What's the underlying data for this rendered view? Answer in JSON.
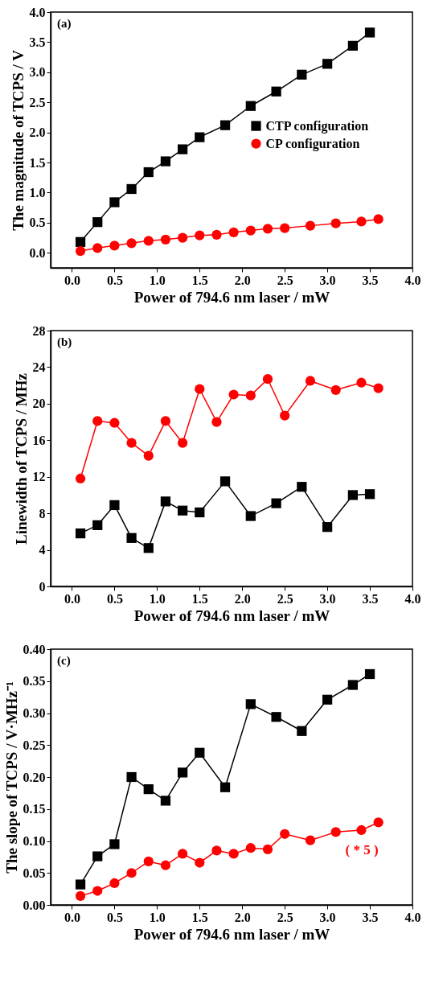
{
  "chart_data": [
    {
      "type": "line",
      "title": "(a)",
      "xlabel": "Power of 794.6 nm laser / mW",
      "ylabel": "The magnitude of TCPS / V",
      "xlim": [
        -0.25,
        4.0
      ],
      "ylim": [
        -0.25,
        4.0
      ],
      "xticks": [
        {
          "value": 0,
          "label": "0.0"
        },
        0.5,
        {
          "value": 1,
          "label": "1.0"
        },
        1.5,
        {
          "value": 2,
          "label": "2.0"
        },
        2.5,
        {
          "value": 3,
          "label": "3.0"
        },
        3.5,
        {
          "value": 4,
          "label": "4.0"
        }
      ],
      "yticks": [
        {
          "value": 0,
          "label": "0.0"
        },
        0.5,
        {
          "value": 1,
          "label": "1.0"
        },
        1.5,
        {
          "value": 2,
          "label": "2.0"
        },
        2.5,
        {
          "value": 3,
          "label": "3.0"
        },
        3.5,
        {
          "value": 4,
          "label": "4.0"
        }
      ],
      "grid": false,
      "legend": "right",
      "series": [
        {
          "name": "CTP configuration",
          "color": "#000000",
          "marker": "square",
          "x": [
            0.1,
            0.3,
            0.5,
            0.7,
            0.9,
            1.1,
            1.3,
            1.5,
            1.8,
            2.1,
            2.4,
            2.7,
            3.0,
            3.3,
            3.5
          ],
          "values": [
            0.18,
            0.51,
            0.84,
            1.06,
            1.34,
            1.52,
            1.72,
            1.92,
            2.12,
            2.44,
            2.68,
            2.96,
            3.14,
            3.44,
            3.66
          ]
        },
        {
          "name": "CP configuration",
          "color": "#ff0000",
          "marker": "circle",
          "x": [
            0.1,
            0.3,
            0.5,
            0.7,
            0.9,
            1.1,
            1.3,
            1.5,
            1.7,
            1.9,
            2.1,
            2.3,
            2.5,
            2.8,
            3.1,
            3.4,
            3.6
          ],
          "values": [
            0.03,
            0.08,
            0.12,
            0.16,
            0.2,
            0.22,
            0.25,
            0.29,
            0.3,
            0.34,
            0.37,
            0.4,
            0.41,
            0.45,
            0.49,
            0.52,
            0.56
          ]
        }
      ]
    },
    {
      "type": "line",
      "title": "(b)",
      "xlabel": "Power of 794.6 nm laser / mW",
      "ylabel": "Linewidth of TCPS / MHz",
      "xlim": [
        -0.25,
        4.0
      ],
      "ylim": [
        0,
        28
      ],
      "xticks": [
        {
          "value": 0,
          "label": "0.0"
        },
        0.5,
        {
          "value": 1,
          "label": "1.0"
        },
        1.5,
        {
          "value": 2,
          "label": "2.0"
        },
        2.5,
        {
          "value": 3,
          "label": "3.0"
        },
        3.5,
        {
          "value": 4,
          "label": "4.0"
        }
      ],
      "yticks": [
        0,
        4,
        8,
        12,
        16,
        20,
        24,
        28
      ],
      "grid": false,
      "legend": "right",
      "series": [
        {
          "name": "CTP configuration",
          "color": "#000000",
          "marker": "square",
          "x": [
            0.1,
            0.3,
            0.5,
            0.7,
            0.9,
            1.1,
            1.3,
            1.5,
            1.8,
            2.1,
            2.4,
            2.7,
            3.0,
            3.3,
            3.5
          ],
          "values": [
            5.8,
            6.7,
            8.9,
            5.3,
            4.2,
            9.3,
            8.3,
            8.1,
            11.5,
            7.7,
            9.1,
            10.9,
            6.5,
            10.0,
            10.1
          ]
        },
        {
          "name": "CP configuration",
          "color": "#ff0000",
          "marker": "circle",
          "x": [
            0.1,
            0.3,
            0.5,
            0.7,
            0.9,
            1.1,
            1.3,
            1.5,
            1.7,
            1.9,
            2.1,
            2.3,
            2.5,
            2.8,
            3.1,
            3.4,
            3.6
          ],
          "values": [
            11.8,
            18.1,
            17.9,
            15.7,
            14.3,
            18.1,
            15.7,
            21.6,
            18.0,
            21.0,
            20.9,
            22.7,
            18.7,
            22.5,
            21.5,
            22.3,
            21.7
          ]
        }
      ]
    },
    {
      "type": "line",
      "title": "(c)",
      "xlabel": "Power of 794.6 nm laser / mW",
      "ylabel": "The slope of TCPS / V·MHz⁻¹",
      "xlim": [
        -0.25,
        4.0
      ],
      "ylim": [
        0,
        0.4
      ],
      "xticks": [
        {
          "value": 0,
          "label": "0.0"
        },
        0.5,
        {
          "value": 1,
          "label": "1.0"
        },
        1.5,
        {
          "value": 2,
          "label": "2.0"
        },
        2.5,
        {
          "value": 3,
          "label": "3.0"
        },
        3.5,
        {
          "value": 4,
          "label": "4.0"
        }
      ],
      "yticks": [
        {
          "value": 0,
          "label": "0.00"
        },
        0.05,
        {
          "value": 0.1,
          "label": "0.10"
        },
        0.15,
        {
          "value": 0.2,
          "label": "0.20"
        },
        0.25,
        {
          "value": 0.3,
          "label": "0.30"
        },
        0.35,
        {
          "value": 0.4,
          "label": "0.40"
        }
      ],
      "grid": false,
      "legend": "right",
      "annotations": [
        "( * 5 )"
      ],
      "series": [
        {
          "name": "CTP configuration",
          "color": "#000000",
          "marker": "square",
          "x": [
            0.1,
            0.3,
            0.5,
            0.7,
            0.9,
            1.1,
            1.3,
            1.5,
            1.8,
            2.1,
            2.4,
            2.7,
            3.0,
            3.3,
            3.5
          ],
          "values": [
            0.032,
            0.076,
            0.095,
            0.2,
            0.181,
            0.163,
            0.207,
            0.238,
            0.184,
            0.314,
            0.294,
            0.272,
            0.321,
            0.344,
            0.361
          ]
        },
        {
          "name": "CP configuration",
          "color": "#ff0000",
          "marker": "circle",
          "x": [
            0.1,
            0.3,
            0.5,
            0.7,
            0.9,
            1.1,
            1.3,
            1.5,
            1.7,
            1.9,
            2.1,
            2.3,
            2.5,
            2.8,
            3.1,
            3.4,
            3.6
          ],
          "values": [
            0.014,
            0.022,
            0.034,
            0.05,
            0.068,
            0.062,
            0.08,
            0.066,
            0.085,
            0.08,
            0.089,
            0.087,
            0.111,
            0.101,
            0.114,
            0.117,
            0.129
          ]
        }
      ]
    }
  ]
}
